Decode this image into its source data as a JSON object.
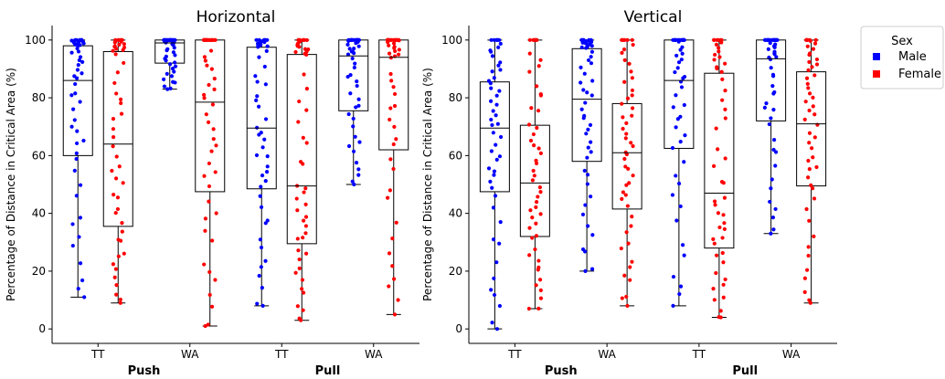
{
  "chart_data": {
    "type": "box",
    "ylabel": "Percentage of Distance in Critical Area (%)",
    "ylim": [
      -5,
      105
    ],
    "y_ticks": [
      0,
      20,
      40,
      60,
      80,
      100
    ],
    "categories": [
      "TT",
      "WA",
      "TT",
      "WA"
    ],
    "groups": [
      "Push",
      "Pull"
    ],
    "legend": {
      "title": "Sex",
      "placement": "outside-right",
      "entries": [
        {
          "label": "Male",
          "color": "#0000ff"
        },
        {
          "label": "Female",
          "color": "#ff0000"
        }
      ]
    },
    "colors": {
      "Male": "#0000ff",
      "Female": "#ff0000"
    },
    "panels": [
      {
        "title": "Horizontal",
        "boxes": [
          {
            "category": "TT",
            "group": "Push",
            "sex": "Male",
            "min": 11,
            "q1": 60,
            "median": 86,
            "q3": 98,
            "max": 100
          },
          {
            "category": "TT",
            "group": "Push",
            "sex": "Female",
            "min": 9,
            "q1": 35.5,
            "median": 64,
            "q3": 96,
            "max": 100
          },
          {
            "category": "WA",
            "group": "Push",
            "sex": "Male",
            "min": 83,
            "q1": 92,
            "median": 99,
            "q3": 100,
            "max": 100
          },
          {
            "category": "WA",
            "group": "Push",
            "sex": "Female",
            "min": 1,
            "q1": 47.5,
            "median": 78.5,
            "q3": 100,
            "max": 100
          },
          {
            "category": "TT",
            "group": "Pull",
            "sex": "Male",
            "min": 8,
            "q1": 48.5,
            "median": 69.5,
            "q3": 97.5,
            "max": 100
          },
          {
            "category": "TT",
            "group": "Pull",
            "sex": "Female",
            "min": 3,
            "q1": 29.5,
            "median": 49.5,
            "q3": 95,
            "max": 100
          },
          {
            "category": "WA",
            "group": "Pull",
            "sex": "Male",
            "min": 50,
            "q1": 75.5,
            "median": 94.5,
            "q3": 100,
            "max": 100
          },
          {
            "category": "WA",
            "group": "Pull",
            "sex": "Female",
            "min": 5,
            "q1": 62,
            "median": 94,
            "q3": 100,
            "max": 100
          }
        ]
      },
      {
        "title": "Vertical",
        "boxes": [
          {
            "category": "TT",
            "group": "Push",
            "sex": "Male",
            "min": 0,
            "q1": 47.5,
            "median": 69.5,
            "q3": 85.5,
            "max": 100
          },
          {
            "category": "TT",
            "group": "Push",
            "sex": "Female",
            "min": 7,
            "q1": 32,
            "median": 50.5,
            "q3": 70.5,
            "max": 100
          },
          {
            "category": "WA",
            "group": "Push",
            "sex": "Male",
            "min": 20,
            "q1": 58,
            "median": 79.5,
            "q3": 97,
            "max": 100
          },
          {
            "category": "WA",
            "group": "Push",
            "sex": "Female",
            "min": 8,
            "q1": 41.5,
            "median": 61,
            "q3": 78,
            "max": 100
          },
          {
            "category": "TT",
            "group": "Pull",
            "sex": "Male",
            "min": 8,
            "q1": 62.5,
            "median": 86,
            "q3": 100,
            "max": 100
          },
          {
            "category": "TT",
            "group": "Pull",
            "sex": "Female",
            "min": 4,
            "q1": 28,
            "median": 47,
            "q3": 88.5,
            "max": 100
          },
          {
            "category": "WA",
            "group": "Pull",
            "sex": "Male",
            "min": 33,
            "q1": 72,
            "median": 93.5,
            "q3": 100,
            "max": 100
          },
          {
            "category": "WA",
            "group": "Pull",
            "sex": "Female",
            "min": 9,
            "q1": 49.5,
            "median": 71,
            "q3": 89,
            "max": 100
          }
        ]
      }
    ]
  }
}
